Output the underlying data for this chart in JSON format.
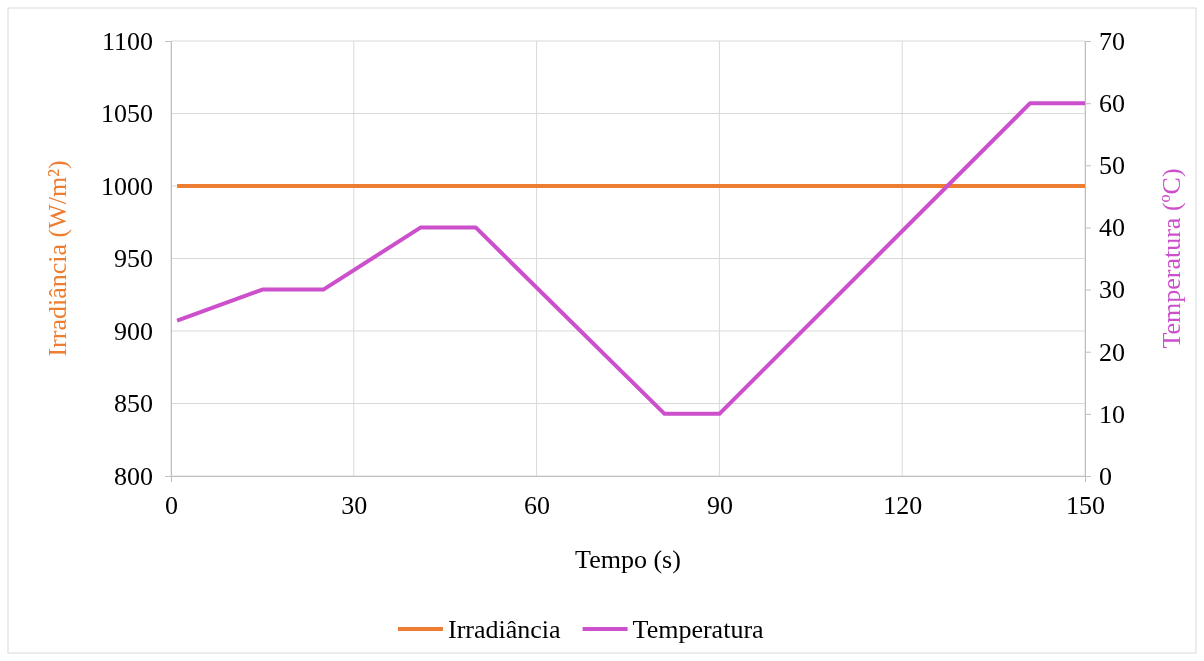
{
  "chart_data": {
    "type": "line",
    "xlabel": "Tempo (s)",
    "ylabel": "Irradiância (W/m²)",
    "y2label": "Temperatura (ºC)",
    "xlim": [
      0,
      150
    ],
    "xticks": [
      0,
      30,
      60,
      90,
      120,
      150
    ],
    "ylim": [
      800,
      1100
    ],
    "yticks": [
      800,
      850,
      900,
      950,
      1000,
      1050,
      1100
    ],
    "y2lim": [
      0,
      70
    ],
    "y2ticks": [
      0,
      10,
      20,
      30,
      40,
      50,
      60,
      70
    ],
    "grid": true,
    "legend": "bottom",
    "line_style": "solid",
    "marker": "none",
    "series": [
      {
        "name": "Irradiância",
        "color": "#ed7d31",
        "x": [
          1,
          150
        ],
        "values": [
          1000,
          1000
        ]
      },
      {
        "name": "Temperatura",
        "color": "#cc4fcc",
        "axis": "y2",
        "x": [
          1,
          15,
          25,
          41,
          50,
          81,
          90,
          141,
          150
        ],
        "values": [
          25,
          30,
          30,
          40,
          40,
          10,
          10,
          60,
          60
        ]
      }
    ]
  }
}
